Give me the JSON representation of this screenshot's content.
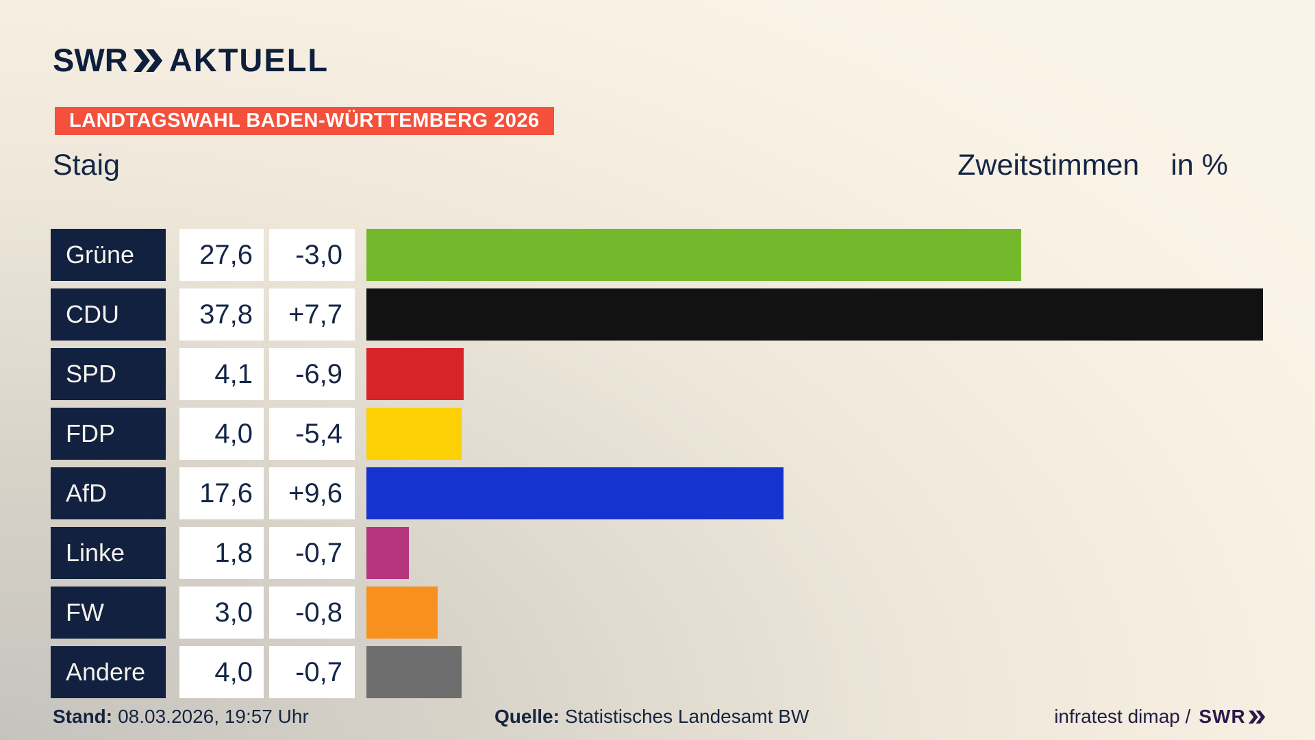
{
  "header": {
    "brand": "SWR",
    "brand_suffix": "AKTUELL",
    "banner": "LANDTAGSWAHL BADEN-WÜRTTEMBERG 2026"
  },
  "subheader": {
    "municipality": "Staig",
    "measure": "Zweitstimmen",
    "unit": "in %"
  },
  "chart_data": {
    "type": "bar",
    "orientation": "horizontal",
    "title": "Zweitstimmen in %",
    "xlim": [
      0,
      40
    ],
    "grid": false,
    "rows": [
      {
        "label": "Grüne",
        "value": 27.6,
        "value_label": "27,6",
        "delta_label": "-3,0",
        "color": "#74b92c"
      },
      {
        "label": "CDU",
        "value": 37.8,
        "value_label": "37,8",
        "delta_label": "+7,7",
        "color": "#121212"
      },
      {
        "label": "SPD",
        "value": 4.1,
        "value_label": "4,1",
        "delta_label": "-6,9",
        "color": "#d7232a"
      },
      {
        "label": "FDP",
        "value": 4.0,
        "value_label": "4,0",
        "delta_label": "-5,4",
        "color": "#fcd005"
      },
      {
        "label": "AfD",
        "value": 17.6,
        "value_label": "17,6",
        "delta_label": "+9,6",
        "color": "#1633cf"
      },
      {
        "label": "Linke",
        "value": 1.8,
        "value_label": "1,8",
        "delta_label": "-0,7",
        "color": "#b5367f"
      },
      {
        "label": "FW",
        "value": 3.0,
        "value_label": "3,0",
        "delta_label": "-0,8",
        "color": "#f7901e"
      },
      {
        "label": "Andere",
        "value": 4.0,
        "value_label": "4,0",
        "delta_label": "-0,7",
        "color": "#6e6e6e"
      }
    ]
  },
  "footer": {
    "stand_label": "Stand:",
    "stand_value": "08.03.2026, 19:57 Uhr",
    "quelle_label": "Quelle:",
    "quelle_value": "Statistisches Landesamt BW",
    "credit": "infratest dimap /",
    "credit_brand": "SWR"
  },
  "colors": {
    "banner": "#f4503c",
    "label_box_bg": "#12213f",
    "brand_navy": "#0e1f3d",
    "text_navy": "#142645",
    "footer_brand": "#2a1a4a"
  }
}
